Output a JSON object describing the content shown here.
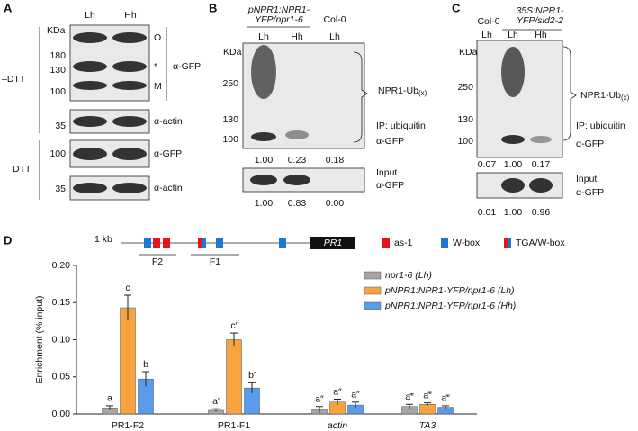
{
  "panel_a": {
    "label": "A",
    "lanes": [
      "Lh",
      "Hh"
    ],
    "kda": "KDa",
    "markers_gfp": [
      "180",
      "130",
      "100"
    ],
    "marker_actin": "35",
    "marker_dtt_gfp": "100",
    "marker_dtt_actin": "35",
    "bands": [
      "O",
      "*",
      "M"
    ],
    "antibody_gfp": "α-GFP",
    "antibody_actin": "α-actin",
    "antibody_dtt_gfp": "α-GFP",
    "antibody_dtt_actin": "α-actin",
    "minus_dtt": "–DTT",
    "dtt": "DTT"
  },
  "panel_b": {
    "label": "B",
    "genotype": [
      "pNPR1:NPR1-",
      "YFP/npr1-6"
    ],
    "control": "Col-0",
    "lanes": [
      "Lh",
      "Hh",
      "Lh"
    ],
    "kda": "KDa",
    "markers": [
      "250",
      "130",
      "100"
    ],
    "npr1_ub": {
      "main": "NPR1-Ub",
      "sub": "(x)"
    },
    "ip": "IP: ubiquitin",
    "antibody": "α-GFP",
    "ip_values": [
      "1.00",
      "0.23",
      "0.18"
    ],
    "input": [
      "Input",
      "α-GFP"
    ],
    "input_values": [
      "1.00",
      "0.83",
      "0.00"
    ]
  },
  "panel_c": {
    "label": "C",
    "genotype": [
      "35S:NPR1-",
      "YFP/sid2-2"
    ],
    "control": "Col-0",
    "lanes": [
      "Lh",
      "Lh",
      "Hh"
    ],
    "kda": "KDa",
    "markers": [
      "250",
      "130",
      "100"
    ],
    "npr1_ub": {
      "main": "NPR1-Ub",
      "sub": "(x)"
    },
    "ip": "IP: ubiquitin",
    "antibody": "α-GFP",
    "ip_values": [
      "0.07",
      "1.00",
      "0.17"
    ],
    "input": [
      "Input",
      "α-GFP"
    ],
    "input_values": [
      "0.01",
      "1.00",
      "0.96"
    ]
  },
  "panel_d": {
    "label": "D",
    "scale": "1 kb",
    "fragments": [
      "F2",
      "F1"
    ],
    "gene": "PR1",
    "elements": [
      "as-1",
      "W-box",
      "TGA/W-box"
    ]
  },
  "chart_data": {
    "type": "bar",
    "y_label": "Enrichment (% input)",
    "categories": [
      "PR1-F2",
      "PR1-F1",
      "actin",
      "TA3"
    ],
    "ylim": [
      0,
      0.2
    ],
    "yticks": [
      {
        "value": 0,
        "label": "0.00"
      },
      {
        "value": 0.05,
        "label": "0.05"
      },
      {
        "value": 0.1,
        "label": "0.10"
      },
      {
        "value": 0.15,
        "label": "0.15"
      },
      {
        "value": 0.2,
        "label": "0.20"
      }
    ],
    "series": [
      {
        "name": "npr1-6 (Lh)",
        "color": "#a6a6a6",
        "values": [
          0.008,
          0.005,
          0.006,
          0.01
        ],
        "errors": [
          0.003,
          0.002,
          0.004,
          0.003
        ],
        "letters": [
          "a",
          "a′",
          "a″",
          "a‴"
        ]
      },
      {
        "name": "pNPR1:NPR1-YFP/npr1-6 (Lh)",
        "color": "#f7a440",
        "values": [
          0.143,
          0.1,
          0.016,
          0.013
        ],
        "errors": [
          0.017,
          0.009,
          0.004,
          0.002
        ],
        "letters": [
          "c",
          "c′",
          "a″",
          "a‴"
        ]
      },
      {
        "name": "pNPR1:NPR1-YFP/npr1-6 (Hh)",
        "color": "#5b9bec",
        "values": [
          0.047,
          0.035,
          0.012,
          0.009
        ],
        "errors": [
          0.01,
          0.007,
          0.004,
          0.002
        ],
        "letters": [
          "b",
          "b′",
          "a″",
          "a‴"
        ]
      }
    ]
  }
}
